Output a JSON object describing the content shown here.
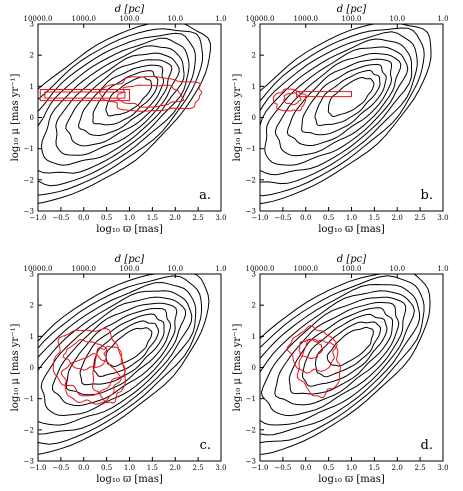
{
  "figure": {
    "panels": [
      "a",
      "b",
      "c",
      "d"
    ]
  },
  "chart_data": [
    {
      "panel": "a",
      "type": "contour",
      "label": "a.",
      "xlabel": "log₁₀ ϖ [mas]",
      "ylabel": "log₁₀ μ [mas yr⁻¹]",
      "top_xlabel": "d [pc]",
      "xlim": [
        -1.0,
        3.0
      ],
      "ylim": [
        -3,
        3
      ],
      "xticks": [
        "−1.0",
        "−0.5",
        "0.0",
        "0.5",
        "1.0",
        "1.5",
        "2.0",
        "2.5",
        "3.0"
      ],
      "yticks": [
        "−3",
        "−2",
        "−1",
        "0",
        "1",
        "2",
        "3"
      ],
      "top_ticks": [
        "10000.0",
        "1000.0",
        "100.0",
        "10.0",
        "1.0"
      ],
      "background_color": "#000000",
      "overlay_color": "#e8141b",
      "overlay": [
        {
          "type": "band",
          "x0": -0.95,
          "x1": 1.0,
          "y": 0.72,
          "half_height": 0.18
        },
        {
          "type": "band",
          "x0": -0.85,
          "x1": 0.9,
          "y": 0.72,
          "half_height": 0.1
        },
        {
          "type": "blob",
          "cx": 1.5,
          "cy": 0.75,
          "rx": 1.1,
          "ry": 0.55
        },
        {
          "type": "blob",
          "cx": 1.45,
          "cy": 0.7,
          "rx": 0.7,
          "ry": 0.35
        }
      ]
    },
    {
      "panel": "b",
      "type": "contour",
      "label": "b.",
      "xlabel": "log₁₀ ϖ [mas]",
      "ylabel": "log₁₀ μ [mas yr⁻¹]",
      "top_xlabel": "d [pc]",
      "xlim": [
        -1.0,
        3.0
      ],
      "ylim": [
        -3,
        3
      ],
      "xticks": [
        "−1.0",
        "−0.5",
        "0.0",
        "0.5",
        "1.0",
        "1.5",
        "2.0",
        "2.5",
        "3.0"
      ],
      "yticks": [
        "−3",
        "−2",
        "−1",
        "0",
        "1",
        "2",
        "3"
      ],
      "top_ticks": [
        "10000.0",
        "1000.0",
        "100.0",
        "10.0",
        "1.0"
      ],
      "background_color": "#000000",
      "overlay_color": "#e8141b",
      "overlay": [
        {
          "type": "blob",
          "cx": -0.35,
          "cy": 0.55,
          "rx": 0.35,
          "ry": 0.35
        },
        {
          "type": "band",
          "x0": -0.2,
          "x1": 1.0,
          "y": 0.75,
          "half_height": 0.08
        },
        {
          "type": "blob",
          "cx": -0.3,
          "cy": 0.6,
          "rx": 0.18,
          "ry": 0.18
        }
      ]
    },
    {
      "panel": "c",
      "type": "contour",
      "label": "c.",
      "xlabel": "log₁₀ ϖ [mas]",
      "ylabel": "log₁₀ μ [mas yr⁻¹]",
      "top_xlabel": "d [pc]",
      "xlim": [
        -1.0,
        3.0
      ],
      "ylim": [
        -3,
        3
      ],
      "xticks": [
        "−1.0",
        "−0.5",
        "0.0",
        "0.5",
        "1.0",
        "1.5",
        "2.0",
        "2.5",
        "3.0"
      ],
      "yticks": [
        "−3",
        "−2",
        "−1",
        "0",
        "1",
        "2",
        "3"
      ],
      "top_ticks": [
        "10000.0",
        "1000.0",
        "100.0",
        "10.0",
        "1.0"
      ],
      "background_color": "#000000",
      "overlay_color": "#e8141b",
      "overlay": [
        {
          "type": "blob",
          "cx": 0.1,
          "cy": 0.2,
          "rx": 0.75,
          "ry": 1.05
        },
        {
          "type": "blob",
          "cx": 0.15,
          "cy": -0.4,
          "rx": 0.6,
          "ry": 0.75
        },
        {
          "type": "blob",
          "cx": 0.05,
          "cy": 0.4,
          "rx": 0.45,
          "ry": 0.45
        },
        {
          "type": "blob",
          "cx": 0.55,
          "cy": -0.2,
          "rx": 0.35,
          "ry": 0.9
        }
      ]
    },
    {
      "panel": "d",
      "type": "contour",
      "label": "d.",
      "xlabel": "log₁₀ ϖ [mas]",
      "ylabel": "log₁₀ μ [mas yr⁻¹]",
      "top_xlabel": "d [pc]",
      "xlim": [
        -1.0,
        3.0
      ],
      "ylim": [
        -3,
        3
      ],
      "xticks": [
        "−1.0",
        "−0.5",
        "0.0",
        "0.5",
        "1.0",
        "1.5",
        "2.0",
        "2.5",
        "3.0"
      ],
      "yticks": [
        "−3",
        "−2",
        "−1",
        "0",
        "1",
        "2",
        "3"
      ],
      "top_ticks": [
        "10000.0",
        "1000.0",
        "100.0",
        "10.0",
        "1.0"
      ],
      "background_color": "#000000",
      "overlay_color": "#e8141b",
      "overlay": [
        {
          "type": "blob",
          "cx": 0.15,
          "cy": 0.55,
          "rx": 0.5,
          "ry": 0.7
        },
        {
          "type": "blob",
          "cx": 0.3,
          "cy": 0.0,
          "rx": 0.45,
          "ry": 0.9
        },
        {
          "type": "blob",
          "cx": 0.1,
          "cy": 0.6,
          "rx": 0.25,
          "ry": 0.3
        }
      ]
    }
  ]
}
